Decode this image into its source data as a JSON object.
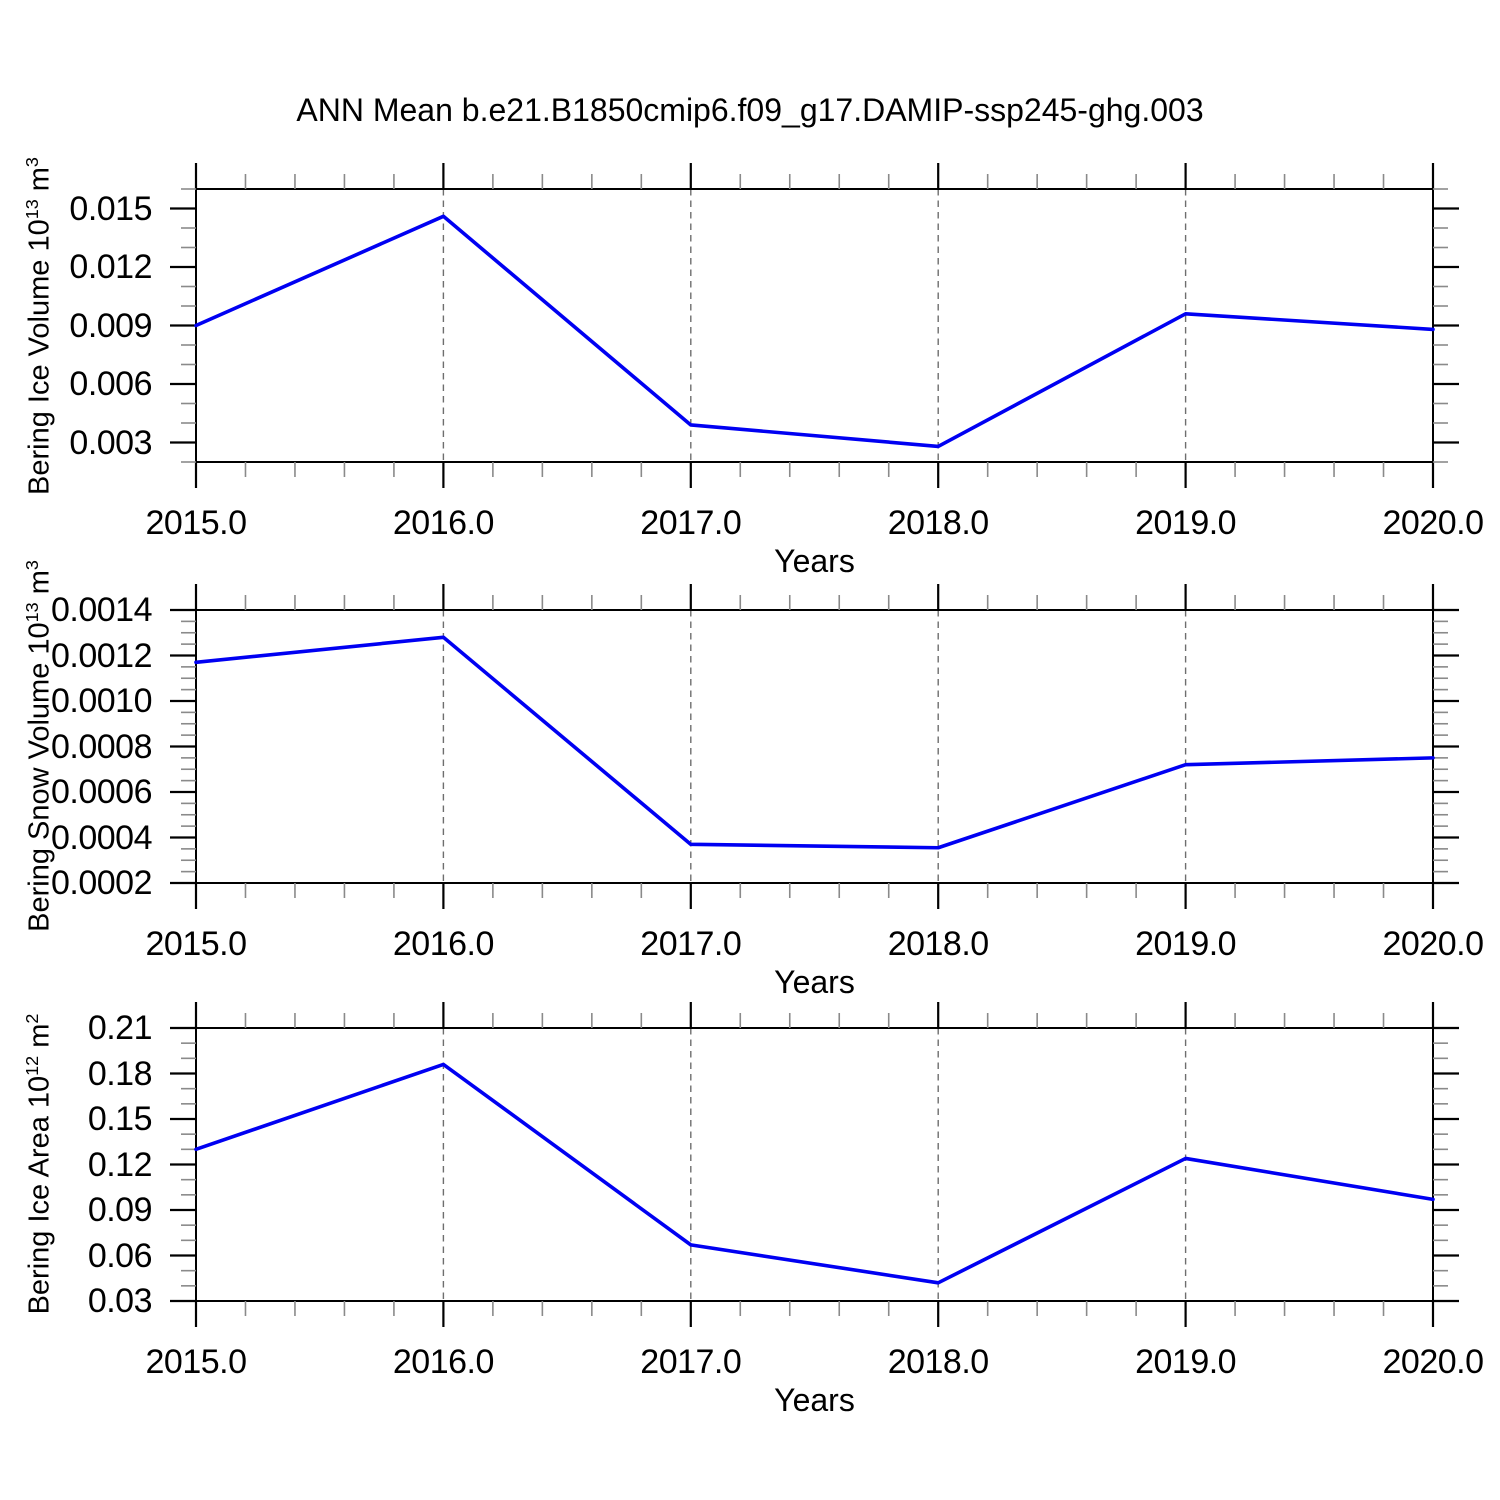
{
  "title": "ANN Mean b.e21.B1850cmip6.f09_g17.DAMIP-ssp245-ghg.003",
  "colors": {
    "line": "#0000f2",
    "frame": "#000000",
    "major_tick": "#000000",
    "minor_tick": "#8a8a8a",
    "grid": "#6e6e6e",
    "text": "#000000",
    "background": "#ffffff"
  },
  "chart_data": {
    "type": "line",
    "title": "ANN Mean b.e21.B1850cmip6.f09_g17.DAMIP-ssp245-ghg.003",
    "xlabel": "Years",
    "x": [
      2015,
      2016,
      2017,
      2018,
      2019,
      2020
    ],
    "x_tick_labels": [
      "2015.0",
      "2016.0",
      "2017.0",
      "2018.0",
      "2019.0",
      "2020.0"
    ],
    "xlim": [
      2015,
      2020
    ],
    "x_minor_step": 0.2,
    "grid_x": [
      2016,
      2017,
      2018,
      2019
    ],
    "legend": "none",
    "grid_horizontal": false,
    "panels": [
      {
        "name": "bering-ice-volume",
        "ylabel_text": "Bering Ice Volume 10^13 m^3",
        "ylabel": {
          "b1": "Bering Ice Volume 10",
          "s1": "13",
          "b2": " m",
          "s2": "3"
        },
        "values": [
          0.009,
          0.0146,
          0.0039,
          0.0028,
          0.0096,
          0.0088
        ],
        "ylim": [
          0.002,
          0.016
        ],
        "yticks": [
          0.003,
          0.006,
          0.009,
          0.012,
          0.015
        ],
        "ytick_labels": [
          "0.003",
          "0.006",
          "0.009",
          "0.012",
          "0.015"
        ],
        "y_minor_step": 0.001
      },
      {
        "name": "bering-snow-volume",
        "ylabel_text": "Bering Snow Volume 10^13 m^3",
        "ylabel": {
          "b1": "Bering Snow Volume 10",
          "s1": "13",
          "b2": " m",
          "s2": "3"
        },
        "values": [
          0.00117,
          0.00128,
          0.00037,
          0.000355,
          0.00072,
          0.00075
        ],
        "ylim": [
          0.0002,
          0.0014
        ],
        "yticks": [
          0.0002,
          0.0004,
          0.0006,
          0.0008,
          0.001,
          0.0012,
          0.0014
        ],
        "ytick_labels": [
          "0.0002",
          "0.0004",
          "0.0006",
          "0.0008",
          "0.0010",
          "0.0012",
          "0.0014"
        ],
        "y_minor_step": 5e-05
      },
      {
        "name": "bering-ice-area",
        "ylabel_text": "Bering Ice Area 10^12 m^2",
        "ylabel": {
          "b1": "Bering Ice Area 10",
          "s1": "12",
          "b2": " m",
          "s2": "2"
        },
        "values": [
          0.13,
          0.186,
          0.067,
          0.042,
          0.124,
          0.097
        ],
        "ylim": [
          0.03,
          0.21
        ],
        "yticks": [
          0.03,
          0.06,
          0.09,
          0.12,
          0.15,
          0.18,
          0.21
        ],
        "ytick_labels": [
          "0.03",
          "0.06",
          "0.09",
          "0.12",
          "0.15",
          "0.18",
          "0.21"
        ],
        "y_minor_step": 0.01
      }
    ]
  }
}
